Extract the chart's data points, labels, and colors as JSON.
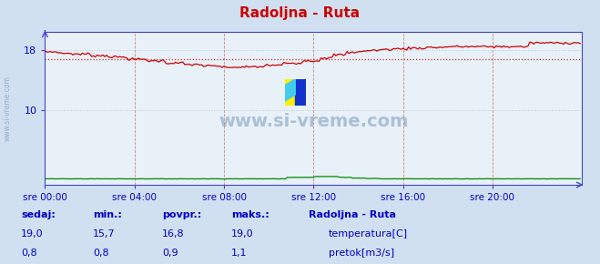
{
  "title": "Radoljna - Ruta",
  "bg_color": "#d0e0f0",
  "plot_bg_color": "#e8f0f8",
  "grid_color_h": "#b8cce0",
  "grid_color_v": "#dda0a0",
  "x_ticks_labels": [
    "sre 00:00",
    "sre 04:00",
    "sre 08:00",
    "sre 12:00",
    "sre 16:00",
    "sre 20:00"
  ],
  "x_ticks_pos": [
    0,
    48,
    96,
    144,
    192,
    240
  ],
  "y_ticks": [
    10,
    18
  ],
  "ylim": [
    0,
    20.5
  ],
  "xlim": [
    0,
    288
  ],
  "avg_temp": 16.8,
  "temp_color": "#cc0000",
  "flow_color": "#008800",
  "avg_line_color": "#cc4444",
  "title_color": "#cc0000",
  "axis_color": "#4444cc",
  "text_color": "#0000cc",
  "footer_label_color": "#0000cc",
  "watermark": "www.si-vreme.com",
  "legend_title": "Radoljna - Ruta",
  "legend_items": [
    "temperatura[C]",
    "pretok[m3/s]"
  ],
  "legend_colors": [
    "#cc0000",
    "#008800"
  ],
  "stats_labels": [
    "sedaj:",
    "min.:",
    "povpr.:",
    "maks.:"
  ],
  "stats_temp": [
    "19,0",
    "15,7",
    "16,8",
    "19,0"
  ],
  "stats_flow": [
    "0,8",
    "0,8",
    "0,9",
    "1,1"
  ],
  "sidebar_text": "www.si-vreme.com"
}
